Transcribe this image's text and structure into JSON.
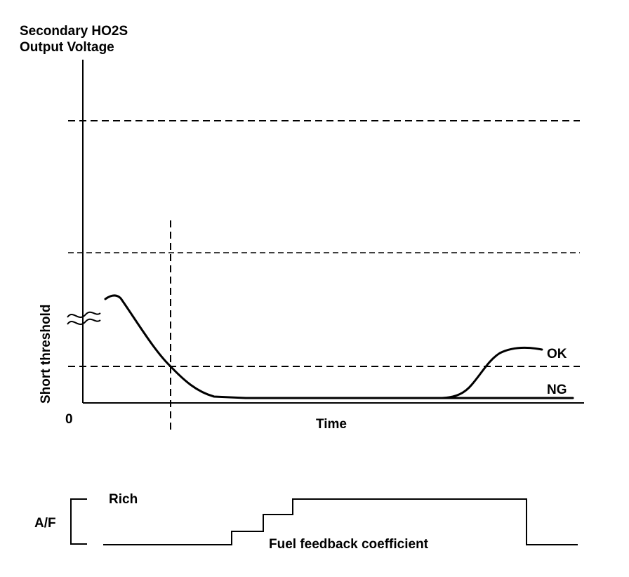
{
  "upper_chart": {
    "ylabel_line1": "Secondary HO2S",
    "ylabel_line2": "Output Voltage",
    "threshold_label": "Short threshold",
    "origin_label": "0",
    "xlabel": "Time",
    "curve_ok_label": "OK",
    "curve_ng_label": "NG"
  },
  "lower_chart": {
    "af_label": "A/F",
    "rich_label": "Rich",
    "signal_label": "Fuel feedback coefficient"
  }
}
